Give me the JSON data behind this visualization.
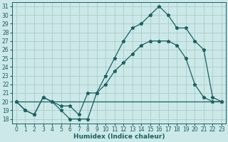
{
  "title": "",
  "xlabel": "Humidex (Indice chaleur)",
  "ylabel": "",
  "bg_color": "#cce8e8",
  "grid_color": "#aacccc",
  "line_color": "#1a6060",
  "xlim": [
    -0.5,
    23.5
  ],
  "ylim": [
    17.5,
    31.5
  ],
  "xticks": [
    0,
    1,
    2,
    3,
    4,
    5,
    6,
    7,
    8,
    9,
    10,
    11,
    12,
    13,
    14,
    15,
    16,
    17,
    18,
    19,
    20,
    21,
    22,
    23
  ],
  "yticks": [
    18,
    19,
    20,
    21,
    22,
    23,
    24,
    25,
    26,
    27,
    28,
    29,
    30,
    31
  ],
  "series1_x": [
    0,
    1,
    2,
    3,
    4,
    5,
    6,
    7,
    8,
    9,
    10,
    11,
    12,
    13,
    14,
    15,
    16,
    17,
    18,
    19,
    20,
    21,
    22,
    23
  ],
  "series1_y": [
    20,
    19,
    18.5,
    20.5,
    20,
    19,
    18,
    18,
    18,
    21,
    23,
    25,
    27,
    28.5,
    29,
    30,
    31,
    30,
    28.5,
    28.5,
    27,
    26,
    20.5,
    20
  ],
  "series2_x": [
    0,
    1,
    2,
    3,
    4,
    5,
    6,
    7,
    8,
    9,
    10,
    11,
    12,
    13,
    14,
    15,
    16,
    17,
    18,
    19,
    20,
    21,
    22,
    23
  ],
  "series2_y": [
    20,
    19,
    18.5,
    20.5,
    20,
    19.5,
    19.5,
    18.5,
    21,
    21,
    22,
    23.5,
    24.5,
    25.5,
    26.5,
    27,
    27,
    27,
    26.5,
    25,
    22,
    20.5,
    20,
    20
  ],
  "series3_x": [
    0,
    23
  ],
  "series3_y": [
    20,
    20
  ],
  "tick_fontsize": 5.5,
  "xlabel_fontsize": 6.5
}
